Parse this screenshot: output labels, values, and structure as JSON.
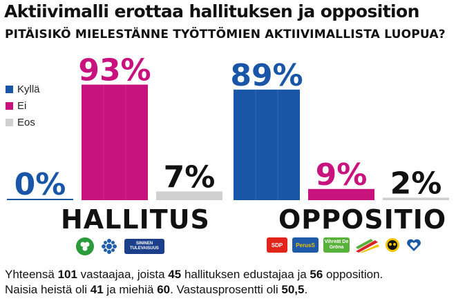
{
  "title": "Aktiivimalli erottaa hallituksen ja opposition",
  "subtitle": "PITÄISIKÖ MIELESTÄNNE TYÖTTÖMIEN AKTIIVIMALLISTA LUOPUA?",
  "colors": {
    "kylla": "#1a56a8",
    "ei": "#c8127e",
    "eos": "#d0d0d0"
  },
  "legend": [
    {
      "label": "Kyllä",
      "color": "#1a56a8"
    },
    {
      "label": "Ei",
      "color": "#c8127e"
    },
    {
      "label": "Eos",
      "color": "#d0d0d0"
    }
  ],
  "chart_data": {
    "type": "bar",
    "ylim": [
      0,
      100
    ],
    "groups": [
      {
        "name": "HALLITUS",
        "bars": [
          {
            "series": "Kyllä",
            "value": 0,
            "label": "0%"
          },
          {
            "series": "Ei",
            "value": 93,
            "label": "93%"
          },
          {
            "series": "Eos",
            "value": 7,
            "label": "7%"
          }
        ]
      },
      {
        "name": "OPPOSITIO",
        "bars": [
          {
            "series": "Kyllä",
            "value": 89,
            "label": "89%"
          },
          {
            "series": "Ei",
            "value": 9,
            "label": "9%"
          },
          {
            "series": "Eos",
            "value": 2,
            "label": "2%"
          }
        ]
      }
    ]
  },
  "logos_hallitus": [
    {
      "name": "kesk-logo",
      "color": "#2a9a3a",
      "text": ""
    },
    {
      "name": "kok-logo",
      "color": "#1f5fae",
      "text": ""
    },
    {
      "name": "sin-logo",
      "color": "#1b3f8b",
      "text": "SININEN TULEVAISUUS"
    }
  ],
  "logos_oppositio": [
    {
      "name": "sdp-logo",
      "color": "#e2231a",
      "text": "SDP"
    },
    {
      "name": "ps-logo",
      "color": "#1e5aa8",
      "text": "PerusS"
    },
    {
      "name": "vihr-logo",
      "color": "#58b13a",
      "text": "Vihreät De Gröna"
    },
    {
      "name": "vas-logo",
      "color": "#d8232a",
      "text": ""
    },
    {
      "name": "rkp-logo",
      "color": "#f2c300",
      "text": ""
    },
    {
      "name": "kd-logo",
      "color": "#1b5aa6",
      "text": ""
    }
  ],
  "footer": {
    "line1_a": "Yhteensä ",
    "total": "101",
    "line1_b": " vastaajaa, joista ",
    "gov": "45",
    "line1_c": " hallituksen edustajaa ja ",
    "opp": "56",
    "line1_d": " opposition.",
    "line2_a": "Naisia heistä oli ",
    "women": "41",
    "line2_b": " ja miehiä ",
    "men": "60",
    "line2_c": ". Vastausprosentti oli ",
    "rate": "50,5",
    "line2_d": "."
  }
}
